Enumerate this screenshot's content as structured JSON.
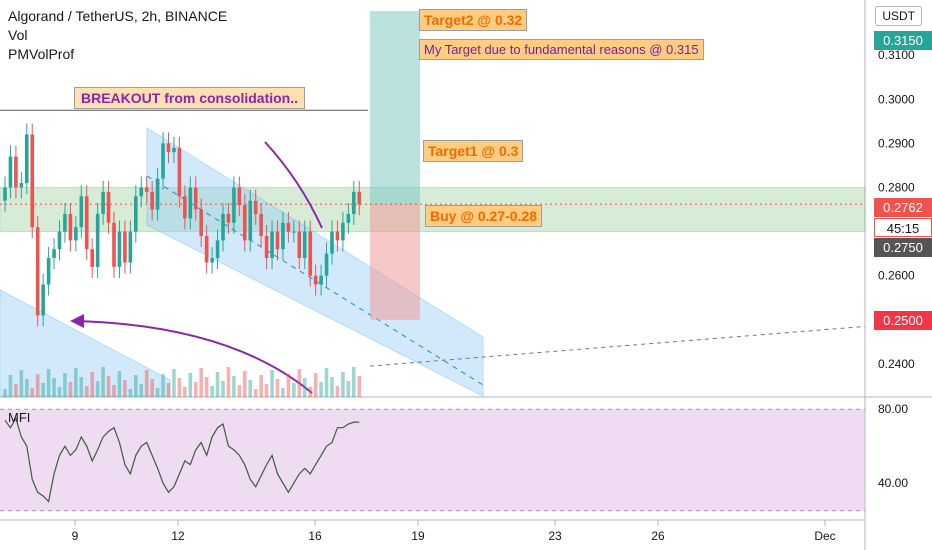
{
  "header": {
    "symbol_line": "Algorand / TetherUS, 2h, BINANCE",
    "vol_label": "Vol",
    "volprof_label": "PMVolProf"
  },
  "currency_button": "USDT",
  "annotations": {
    "target2": "Target2 @ 0.32",
    "my_target": "My Target due to fundamental reasons @ 0.315",
    "breakout": "BREAKOUT from consolidation..",
    "target1": "Target1 @ 0.3",
    "buy": "Buy @ 0.27-0.28"
  },
  "price_tags": [
    {
      "text": "0.3150",
      "color": "#26a69a"
    },
    {
      "text": "0.2762",
      "color": "#ef5350"
    },
    {
      "text": "45:15",
      "color": "#ffffff"
    },
    {
      "text": "0.2750",
      "color": "#555555"
    },
    {
      "text": "0.2500",
      "color": "#f23645"
    }
  ],
  "mfi_label": "MFI",
  "colors": {
    "up": "#26a69a",
    "down": "#ef5350",
    "zone": "#a5d6a7",
    "channel": "#90caf9",
    "mfi_band": "#e1bee7",
    "arrow": "#8e24aa"
  },
  "chart_data": {
    "type": "candlestick",
    "title": "Algorand / TetherUS, 2h, BINANCE",
    "price_axis": {
      "ticks": [
        "0.3100",
        "0.3000",
        "0.2900",
        "0.2800",
        "0.2600",
        "0.2400"
      ],
      "range": [
        0.2325,
        0.3225
      ]
    },
    "mfi_axis": {
      "ticks": [
        "80.00",
        "40.00"
      ],
      "range": [
        20,
        85
      ]
    },
    "x_ticks": [
      "9",
      "12",
      "16",
      "19",
      "23",
      "26",
      "Dec"
    ],
    "levels": {
      "buy_zone": [
        0.27,
        0.28
      ],
      "target1": 0.3,
      "target2": 0.32,
      "fundamental_target": 0.315,
      "stop": 0.25,
      "last": 0.2762
    },
    "close": [
      0.28,
      0.287,
      0.28,
      0.281,
      0.292,
      0.271,
      0.251,
      0.258,
      0.264,
      0.266,
      0.27,
      0.274,
      0.268,
      0.271,
      0.278,
      0.266,
      0.262,
      0.274,
      0.279,
      0.272,
      0.262,
      0.27,
      0.263,
      0.27,
      0.278,
      0.28,
      0.279,
      0.275,
      0.282,
      0.29,
      0.288,
      0.289,
      0.278,
      0.273,
      0.28,
      0.275,
      0.269,
      0.263,
      0.264,
      0.268,
      0.274,
      0.272,
      0.28,
      0.276,
      0.268,
      0.277,
      0.274,
      0.269,
      0.264,
      0.27,
      0.266,
      0.272,
      0.27,
      0.27,
      0.264,
      0.27,
      0.26,
      0.258,
      0.26,
      0.265,
      0.27,
      0.268,
      0.272,
      0.274,
      0.279,
      0.2762
    ],
    "mfi": [
      74,
      70,
      75,
      65,
      60,
      42,
      35,
      33,
      30,
      45,
      55,
      60,
      55,
      58,
      65,
      60,
      52,
      58,
      65,
      68,
      70,
      62,
      50,
      45,
      55,
      60,
      62,
      55,
      48,
      40,
      35,
      38,
      45,
      52,
      50,
      58,
      62,
      55,
      65,
      70,
      72,
      60,
      58,
      55,
      50,
      42,
      38,
      44,
      50,
      55,
      45,
      40,
      35,
      40,
      45,
      48,
      45,
      50,
      55,
      60,
      62,
      70,
      70,
      72,
      73,
      73
    ]
  }
}
